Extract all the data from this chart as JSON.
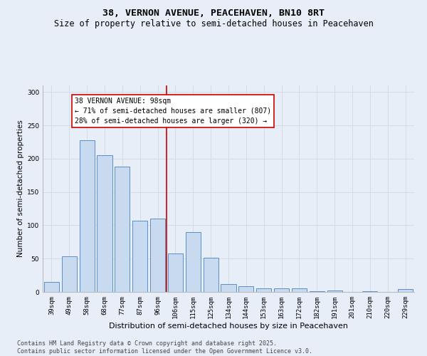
{
  "title": "38, VERNON AVENUE, PEACEHAVEN, BN10 8RT",
  "subtitle": "Size of property relative to semi-detached houses in Peacehaven",
  "xlabel": "Distribution of semi-detached houses by size in Peacehaven",
  "ylabel": "Number of semi-detached properties",
  "categories": [
    "39sqm",
    "49sqm",
    "58sqm",
    "68sqm",
    "77sqm",
    "87sqm",
    "96sqm",
    "106sqm",
    "115sqm",
    "125sqm",
    "134sqm",
    "144sqm",
    "153sqm",
    "163sqm",
    "172sqm",
    "182sqm",
    "191sqm",
    "201sqm",
    "210sqm",
    "220sqm",
    "229sqm"
  ],
  "values": [
    15,
    53,
    228,
    205,
    188,
    107,
    110,
    58,
    90,
    51,
    12,
    9,
    5,
    5,
    5,
    1,
    2,
    0,
    1,
    0,
    4
  ],
  "bar_color": "#c8daf0",
  "bar_edge_color": "#5b8fc9",
  "highlight_index": 6,
  "highlight_line_color": "#cc0000",
  "annotation_line1": "38 VERNON AVENUE: 98sqm",
  "annotation_line2": "← 71% of semi-detached houses are smaller (807)",
  "annotation_line3": "28% of semi-detached houses are larger (320) →",
  "annotation_box_color": "#ffffff",
  "annotation_box_edge_color": "#cc0000",
  "ylim": [
    0,
    310
  ],
  "yticks": [
    0,
    50,
    100,
    150,
    200,
    250,
    300
  ],
  "grid_color": "#d4dce8",
  "background_color": "#e8eef8",
  "footer_text": "Contains HM Land Registry data © Crown copyright and database right 2025.\nContains public sector information licensed under the Open Government Licence v3.0.",
  "title_fontsize": 9.5,
  "subtitle_fontsize": 8.5,
  "xlabel_fontsize": 8,
  "ylabel_fontsize": 7.5,
  "tick_fontsize": 6.5,
  "annotation_fontsize": 7,
  "footer_fontsize": 6
}
